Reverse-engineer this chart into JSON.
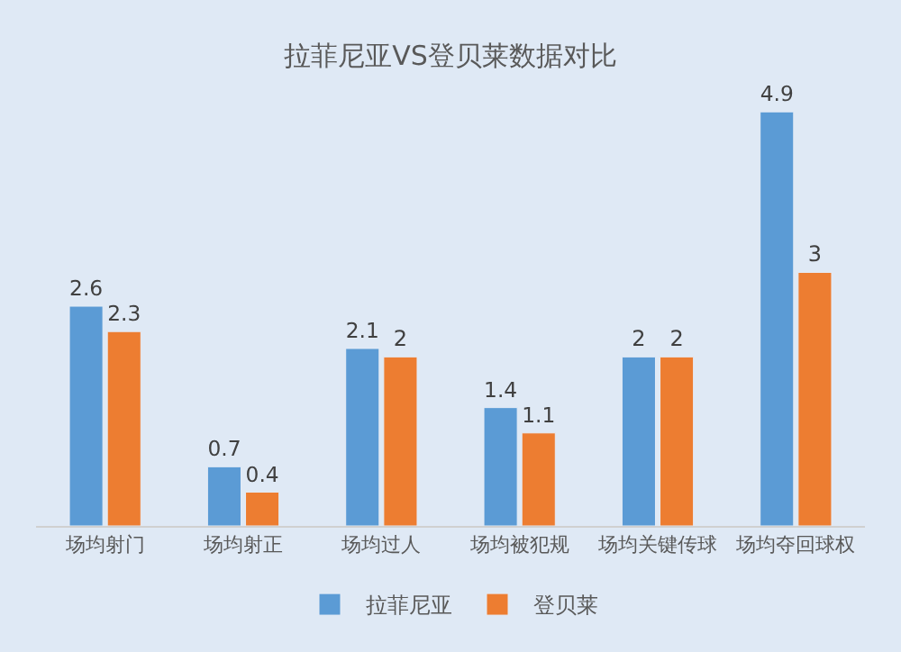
{
  "chart_data": {
    "type": "bar",
    "title": "拉菲尼亚VS登贝莱数据对比",
    "categories": [
      "场均射门",
      "场均射正",
      "场均过人",
      "场均被犯规",
      "场均关键传球",
      "场均夺回球权"
    ],
    "series": [
      {
        "name": "拉菲尼亚",
        "color": "#5b9bd5",
        "values": [
          2.6,
          0.7,
          2.1,
          1.4,
          2,
          4.9
        ]
      },
      {
        "name": "登贝莱",
        "color": "#ed7d31",
        "values": [
          2.3,
          0.4,
          2,
          1.1,
          2,
          3
        ]
      }
    ],
    "data_labels": true,
    "grid": false,
    "legend": "bottom"
  }
}
